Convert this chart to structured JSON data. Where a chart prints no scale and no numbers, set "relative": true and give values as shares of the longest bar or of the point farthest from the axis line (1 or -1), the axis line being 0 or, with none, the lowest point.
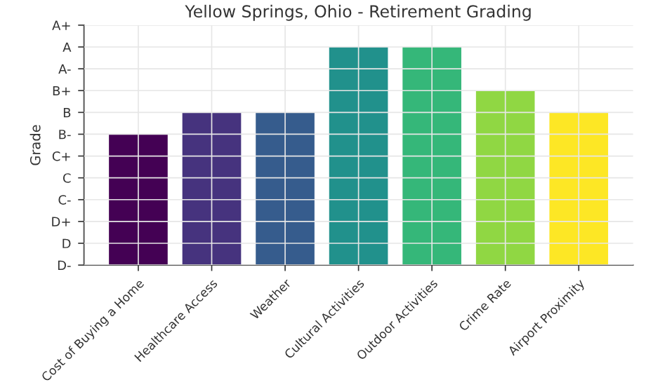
{
  "chart_data": {
    "type": "bar",
    "title": "Yellow Springs, Ohio - Retirement Grading",
    "ylabel": "Grade",
    "categories": [
      "Cost of Buying a Home",
      "Healthcare Access",
      "Weather",
      "Cultural Activities",
      "Outdoor Activities",
      "Crime Rate",
      "Airport Proximity"
    ],
    "values": [
      0.6,
      0.7,
      0.7,
      1,
      1,
      0.8,
      0.7
    ],
    "relative": true,
    "annotations": [
      "D-",
      "D",
      "D+",
      "C-",
      "C",
      "C+",
      "B-",
      "B",
      "B+",
      "A-",
      "A",
      "A+"
    ],
    "colors": [
      "#440154",
      "#46337e",
      "#365c8d",
      "#21918c",
      "#35b779",
      "#90d743",
      "#fde725"
    ],
    "grid": true
  }
}
